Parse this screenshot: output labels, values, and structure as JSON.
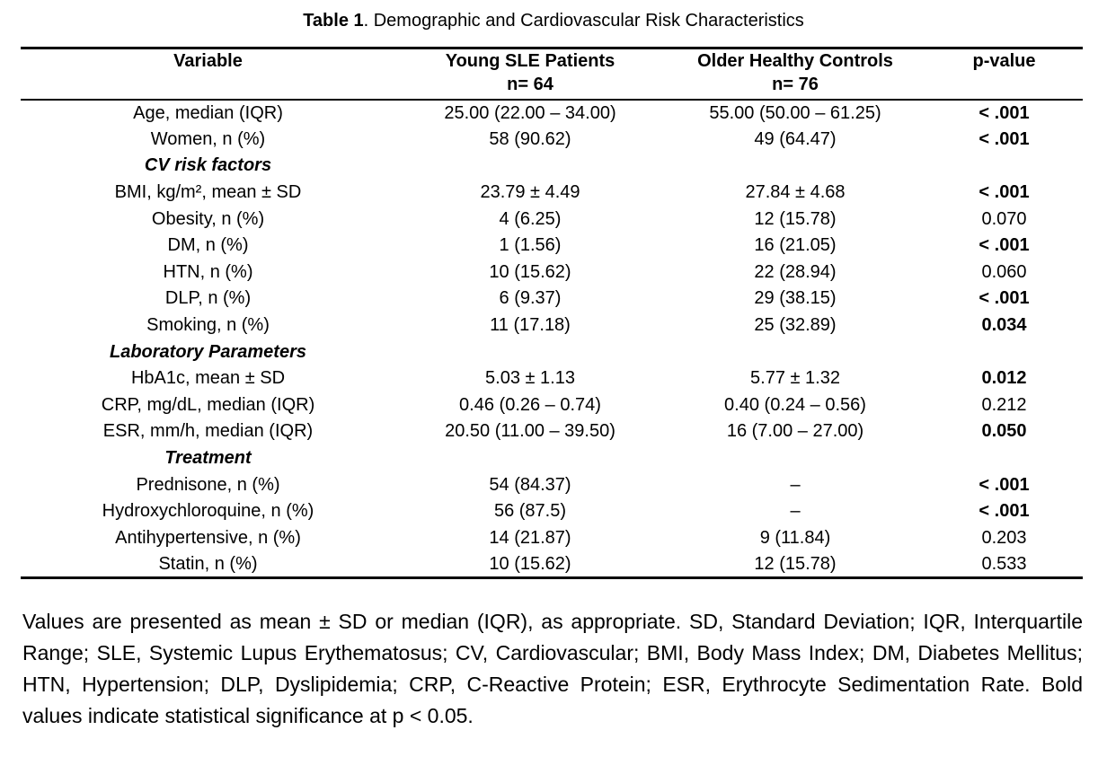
{
  "page": {
    "background_color": "#ffffff",
    "text_color": "#000000"
  },
  "title": {
    "label_bold": "Table 1",
    "label_rest": ". Demographic and Cardiovascular Risk Characteristics"
  },
  "table": {
    "columns": [
      {
        "header": "Variable",
        "subheader": ""
      },
      {
        "header": "Young SLE Patients",
        "subheader": "n= 64"
      },
      {
        "header": "Older Healthy Controls",
        "subheader": "n= 76"
      },
      {
        "header": "p-value",
        "subheader": ""
      }
    ],
    "rows": [
      {
        "type": "data",
        "variable": "Age, median (IQR)",
        "young_sle": "25.00 (22.00 – 34.00)",
        "older_controls": "55.00 (50.00 – 61.25)",
        "p_value": "< .001",
        "p_bold": true
      },
      {
        "type": "data",
        "variable": "Women, n (%)",
        "young_sle": "58 (90.62)",
        "older_controls": "49 (64.47)",
        "p_value": "< .001",
        "p_bold": true
      },
      {
        "type": "section",
        "variable": "CV risk factors"
      },
      {
        "type": "data",
        "variable": "BMI, kg/m², mean ± SD",
        "young_sle": "23.79 ± 4.49",
        "older_controls": "27.84 ± 4.68",
        "p_value": "< .001",
        "p_bold": true
      },
      {
        "type": "data",
        "variable": "Obesity, n (%)",
        "young_sle": "4 (6.25)",
        "older_controls": "12 (15.78)",
        "p_value": "0.070",
        "p_bold": false
      },
      {
        "type": "data",
        "variable": "DM, n (%)",
        "young_sle": "1 (1.56)",
        "older_controls": "16 (21.05)",
        "p_value": "< .001",
        "p_bold": true
      },
      {
        "type": "data",
        "variable": "HTN, n (%)",
        "young_sle": "10 (15.62)",
        "older_controls": "22 (28.94)",
        "p_value": "0.060",
        "p_bold": false
      },
      {
        "type": "data",
        "variable": "DLP, n (%)",
        "young_sle": "6 (9.37)",
        "older_controls": "29 (38.15)",
        "p_value": "< .001",
        "p_bold": true
      },
      {
        "type": "data",
        "variable": "Smoking, n (%)",
        "young_sle": "11 (17.18)",
        "older_controls": "25 (32.89)",
        "p_value": "0.034",
        "p_bold": true
      },
      {
        "type": "section",
        "variable": "Laboratory Parameters"
      },
      {
        "type": "data",
        "variable": "HbA1c, mean ± SD",
        "young_sle": "5.03 ± 1.13",
        "older_controls": "5.77 ± 1.32",
        "p_value": "0.012",
        "p_bold": true
      },
      {
        "type": "data",
        "variable": "CRP, mg/dL, median (IQR)",
        "young_sle": "0.46 (0.26 – 0.74)",
        "older_controls": "0.40 (0.24 – 0.56)",
        "p_value": "0.212",
        "p_bold": false
      },
      {
        "type": "data",
        "variable": "ESR, mm/h, median (IQR)",
        "young_sle": "20.50 (11.00 – 39.50)",
        "older_controls": "16 (7.00 – 27.00)",
        "p_value": "0.050",
        "p_bold": true
      },
      {
        "type": "section",
        "variable": "Treatment"
      },
      {
        "type": "data",
        "variable": "Prednisone, n (%)",
        "young_sle": "54 (84.37)",
        "older_controls": "–",
        "p_value": "< .001",
        "p_bold": true
      },
      {
        "type": "data",
        "variable": "Hydroxychloroquine, n (%)",
        "young_sle": "56 (87.5)",
        "older_controls": "–",
        "p_value": "< .001",
        "p_bold": true
      },
      {
        "type": "data",
        "variable": "Antihypertensive, n (%)",
        "young_sle": "14 (21.87)",
        "older_controls": "9 (11.84)",
        "p_value": "0.203",
        "p_bold": false
      },
      {
        "type": "data",
        "variable": "Statin, n (%)",
        "young_sle": "10 (15.62)",
        "older_controls": "12 (15.78)",
        "p_value": "0.533",
        "p_bold": false
      }
    ]
  },
  "footnote": {
    "text": "Values are presented as mean ± SD or median (IQR), as appropriate. SD, Standard Deviation; IQR, Interquartile Range; SLE, Systemic Lupus Erythematosus; CV, Cardiovascular; BMI, Body Mass Index; DM, Diabetes Mellitus; HTN, Hypertension; DLP, Dyslipidemia; CRP, C-Reactive Protein; ESR, Erythrocyte Sedimentation Rate. Bold values indicate statistical significance at p < 0.05."
  }
}
